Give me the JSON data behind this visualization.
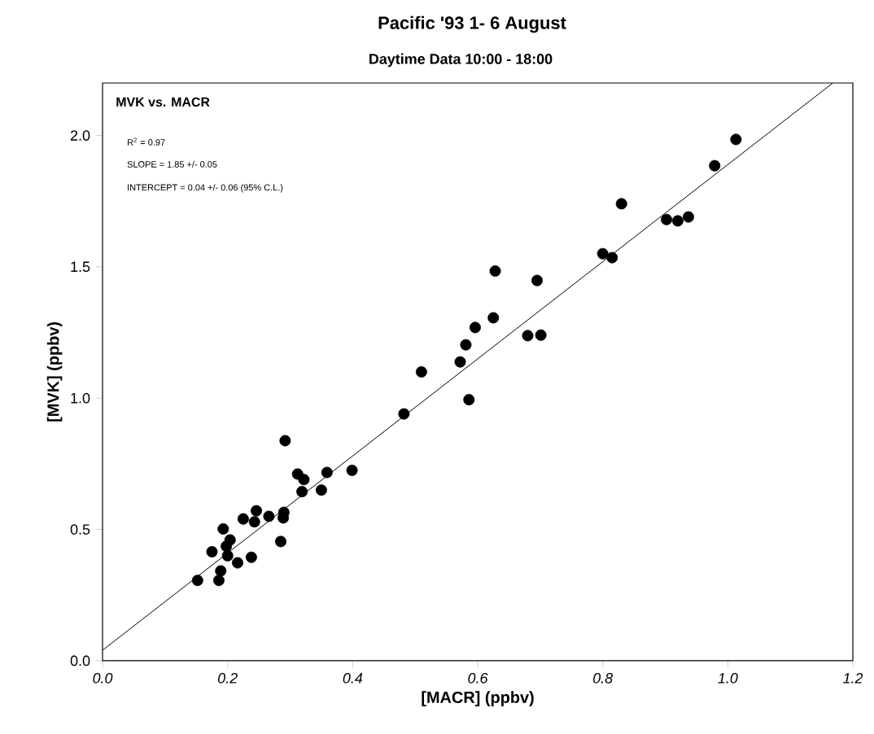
{
  "chart_data": {
    "type": "scatter",
    "title": "Pacific '93        1- 6 August",
    "subtitle": "Daytime Data  10:00 - 18:00",
    "xlabel": "[MACR]  (ppbv)",
    "ylabel": "[MVK]  (ppbv)",
    "annotations": [
      "MVK vs. MACR",
      "R$^{2}$ = 0.97",
      "SLOPE = 1.85 +/- 0.05",
      "INTERCEPT = 0.04 +/- 0.06  (95% C.L.)"
    ],
    "xlim": [
      0,
      1.2
    ],
    "ylim": [
      0,
      2.2
    ],
    "xticks": [
      {
        "value": 0,
        "label": "0.0"
      },
      {
        "value": 0.2,
        "label": "0.2"
      },
      {
        "value": 0.4,
        "label": "0.4"
      },
      {
        "value": 0.6,
        "label": "0.6"
      },
      {
        "value": 0.8,
        "label": "0.8"
      },
      {
        "value": 1.0,
        "label": "1.0"
      },
      {
        "value": 1.2,
        "label": "1.2"
      }
    ],
    "yticks": [
      {
        "value": 0,
        "label": "0.0"
      },
      {
        "value": 0.5,
        "label": "0.5"
      },
      {
        "value": 1.0,
        "label": "1.0"
      },
      {
        "value": 1.5,
        "label": "1.5"
      },
      {
        "value": 2.0,
        "label": "2.0"
      }
    ],
    "series": [
      {
        "color": "#000000",
        "marker": "circle",
        "x": [
          1.013,
          0.979,
          0.83,
          0.902,
          0.92,
          0.937,
          0.8,
          0.815,
          0.628,
          0.695,
          0.625,
          0.596,
          0.581,
          0.68,
          0.701,
          0.572,
          0.586,
          0.51,
          0.482,
          0.292,
          0.312,
          0.322,
          0.319,
          0.359,
          0.399,
          0.35,
          0.29,
          0.289,
          0.285,
          0.266,
          0.246,
          0.243,
          0.225,
          0.193,
          0.204,
          0.198,
          0.175,
          0.2,
          0.216,
          0.238,
          0.189,
          0.186,
          0.152
        ],
        "values": [
          1.985,
          1.885,
          1.74,
          1.68,
          1.675,
          1.69,
          1.55,
          1.535,
          1.484,
          1.448,
          1.306,
          1.269,
          1.203,
          1.238,
          1.24,
          1.138,
          0.994,
          1.1,
          0.94,
          0.838,
          0.711,
          0.69,
          0.644,
          0.717,
          0.725,
          0.65,
          0.565,
          0.544,
          0.454,
          0.55,
          0.571,
          0.529,
          0.54,
          0.502,
          0.46,
          0.436,
          0.415,
          0.4,
          0.373,
          0.394,
          0.342,
          0.306,
          0.306
        ]
      },
      {
        "type": "line",
        "color": "#000000",
        "marker": "none",
        "line_style": "solid",
        "x": [
          0,
          1.168
        ],
        "values": [
          0.04,
          2.2
        ]
      }
    ]
  }
}
